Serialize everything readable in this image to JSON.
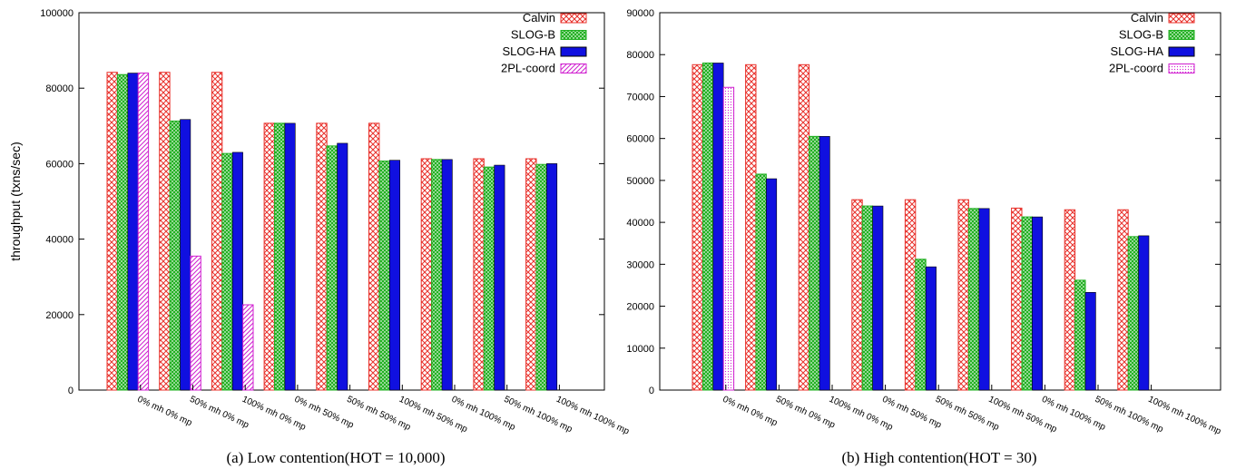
{
  "chart_data": [
    {
      "type": "bar",
      "caption": "(a)  Low contention(HOT = 10,000)",
      "ylabel": "throughput (txns/sec)",
      "xlabel": "",
      "ylim": [
        0,
        100000
      ],
      "yticks": [
        0,
        20000,
        40000,
        60000,
        80000,
        100000
      ],
      "grid": false,
      "legend_position": "top-right",
      "categories": [
        "0% mh 0% mp",
        "50% mh 0% mp",
        "100% mh 0% mp",
        "0% mh 50% mp",
        "50% mh 50% mp",
        "100% mh 50% mp",
        "0% mh 100% mp",
        "50% mh 100% mp",
        "100% mh 100% mp"
      ],
      "series": [
        {
          "name": "Calvin",
          "pattern": "crosshatch",
          "color": "#e8302a",
          "values": [
            84200,
            84200,
            84200,
            70700,
            70700,
            70700,
            61300,
            61300,
            61300
          ]
        },
        {
          "name": "SLOG-B",
          "pattern": "dots",
          "color": "#22b022",
          "values": [
            83600,
            71300,
            62700,
            70700,
            64700,
            60700,
            61100,
            59100,
            59800
          ]
        },
        {
          "name": "SLOG-HA",
          "pattern": "solid",
          "color": "#1010e0",
          "values": [
            84000,
            71700,
            63000,
            70700,
            65400,
            60900,
            61100,
            59600,
            60000
          ]
        },
        {
          "name": "2PL-coord",
          "pattern": "diagonal",
          "color": "#d020d0",
          "values": [
            84000,
            35500,
            22600,
            0,
            0,
            0,
            0,
            0,
            0
          ]
        }
      ]
    },
    {
      "type": "bar",
      "caption": "(b)  High contention(HOT = 30)",
      "ylabel": "",
      "xlabel": "",
      "ylim": [
        0,
        90000
      ],
      "yticks": [
        0,
        10000,
        20000,
        30000,
        40000,
        50000,
        60000,
        70000,
        80000,
        90000
      ],
      "grid": false,
      "legend_position": "top-right",
      "categories": [
        "0% mh 0% mp",
        "50% mh 0% mp",
        "100% mh 0% mp",
        "0% mh 50% mp",
        "50% mh 50% mp",
        "100% mh 50% mp",
        "0% mh 100% mp",
        "50% mh 100% mp",
        "100% mh 100% mp"
      ],
      "series": [
        {
          "name": "Calvin",
          "pattern": "crosshatch",
          "color": "#e8302a",
          "values": [
            77600,
            77600,
            77600,
            45400,
            45400,
            45400,
            43400,
            43000,
            43000
          ]
        },
        {
          "name": "SLOG-B",
          "pattern": "dots",
          "color": "#22b022",
          "values": [
            78000,
            51500,
            60500,
            43900,
            31200,
            43300,
            41300,
            26200,
            36600
          ]
        },
        {
          "name": "SLOG-HA",
          "pattern": "solid",
          "color": "#1010e0",
          "values": [
            78000,
            50400,
            60500,
            43900,
            29400,
            43300,
            41300,
            23300,
            36800
          ]
        },
        {
          "name": "2PL-coord",
          "pattern": "dotted",
          "color": "#d020d0",
          "values": [
            72200,
            0,
            0,
            0,
            0,
            0,
            0,
            0,
            0
          ]
        }
      ]
    }
  ]
}
